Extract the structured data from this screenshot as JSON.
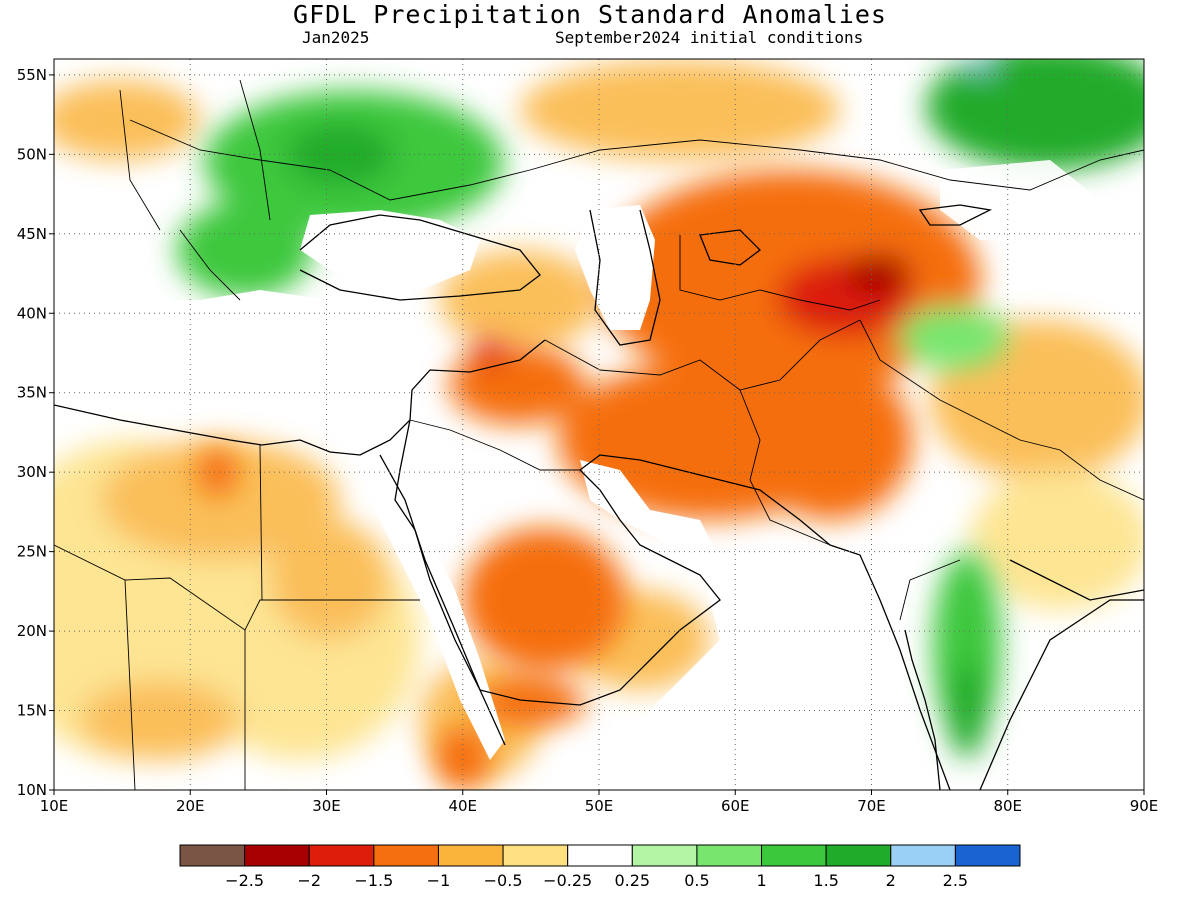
{
  "title": "GFDL Precipitation Standard Anomalies",
  "subtitle_left": "Jan2025",
  "subtitle_right": "September2024 initial conditions",
  "map": {
    "lon_range": [
      10,
      90
    ],
    "lat_range": [
      10,
      56
    ],
    "x_ticks": [
      {
        "value": 10,
        "label": "10E"
      },
      {
        "value": 20,
        "label": "20E"
      },
      {
        "value": 30,
        "label": "30E"
      },
      {
        "value": 40,
        "label": "40E"
      },
      {
        "value": 50,
        "label": "50E"
      },
      {
        "value": 60,
        "label": "60E"
      },
      {
        "value": 70,
        "label": "70E"
      },
      {
        "value": 80,
        "label": "80E"
      },
      {
        "value": 90,
        "label": "90E"
      }
    ],
    "y_ticks": [
      {
        "value": 10,
        "label": "10N"
      },
      {
        "value": 15,
        "label": "15N"
      },
      {
        "value": 20,
        "label": "20N"
      },
      {
        "value": 25,
        "label": "25N"
      },
      {
        "value": 30,
        "label": "30N"
      },
      {
        "value": 35,
        "label": "35N"
      },
      {
        "value": 40,
        "label": "40N"
      },
      {
        "value": 45,
        "label": "45N"
      },
      {
        "value": 50,
        "label": "50N"
      },
      {
        "value": 55,
        "label": "55N"
      }
    ],
    "grid": "dotted"
  },
  "colorbar": {
    "colors": [
      "#7a5444",
      "#a80000",
      "#dc1e0a",
      "#f56e0f",
      "#fab43c",
      "#fde181",
      "#ffffff",
      "#b4f5a5",
      "#78e66e",
      "#3cc83c",
      "#20ab2a",
      "#9ad0f4",
      "#1a64d2"
    ],
    "labels": [
      "-2.5",
      "-2",
      "-1.5",
      "-1",
      "-0.5",
      "-0.25",
      "0.25",
      "0.5",
      "1",
      "1.5",
      "2",
      "2.5"
    ]
  },
  "regions": [
    {
      "name": "east-europe-wet",
      "level": 9,
      "lon": 32,
      "lat": 49.5,
      "rx": 11,
      "ry": 4.5
    },
    {
      "name": "ukraine-wet-core",
      "level": 10,
      "lon": 31,
      "lat": 50,
      "rx": 4,
      "ry": 2
    },
    {
      "name": "balkans-wet",
      "level": 9,
      "lon": 24,
      "lat": 44,
      "rx": 5,
      "ry": 3
    },
    {
      "name": "siberia-wet",
      "level": 10,
      "lon": 83,
      "lat": 53,
      "rx": 9,
      "ry": 4
    },
    {
      "name": "siberia-blue",
      "level": 11,
      "lon": 78,
      "lat": 55.6,
      "rx": 1.2,
      "ry": 0.4
    },
    {
      "name": "central-asia-dry",
      "level": 3,
      "lon": 64,
      "lat": 42,
      "rx": 14,
      "ry": 7
    },
    {
      "name": "central-asia-core",
      "level": 2,
      "lon": 68,
      "lat": 41,
      "rx": 5,
      "ry": 2.5
    },
    {
      "name": "tajik-darkred",
      "level": 1,
      "lon": 70.5,
      "lat": 42.5,
      "rx": 2.5,
      "ry": 1.3
    },
    {
      "name": "iran-dry",
      "level": 3,
      "lon": 58,
      "lat": 32,
      "rx": 11,
      "ry": 5
    },
    {
      "name": "afghan-pak-dry",
      "level": 3,
      "lon": 67,
      "lat": 32,
      "rx": 6,
      "ry": 5
    },
    {
      "name": "arabia-dry",
      "level": 3,
      "lon": 46,
      "lat": 22,
      "rx": 6,
      "ry": 4.5
    },
    {
      "name": "iraq-dry",
      "level": 3,
      "lon": 44,
      "lat": 35.5,
      "rx": 5,
      "ry": 2.5
    },
    {
      "name": "turkey-core",
      "level": 2,
      "lon": 42,
      "lat": 37.5,
      "rx": 1.5,
      "ry": 0.8
    },
    {
      "name": "egypt-dry",
      "level": 3,
      "lon": 22,
      "lat": 30,
      "rx": 1.5,
      "ry": 1.5
    },
    {
      "name": "yemen-dry",
      "level": 3,
      "lon": 45,
      "lat": 15.5,
      "rx": 4,
      "ry": 1.5
    },
    {
      "name": "ethiopia-dry",
      "level": 3,
      "lon": 40,
      "lat": 12,
      "rx": 2,
      "ry": 2
    },
    {
      "name": "india-wet",
      "level": 9,
      "lon": 77,
      "lat": 19,
      "rx": 2.5,
      "ry": 6
    },
    {
      "name": "india-wet-core",
      "level": 10,
      "lon": 77,
      "lat": 15,
      "rx": 1.5,
      "ry": 3
    },
    {
      "name": "china-wet",
      "level": 8,
      "lon": 76,
      "lat": 38.5,
      "rx": 4,
      "ry": 2
    }
  ]
}
